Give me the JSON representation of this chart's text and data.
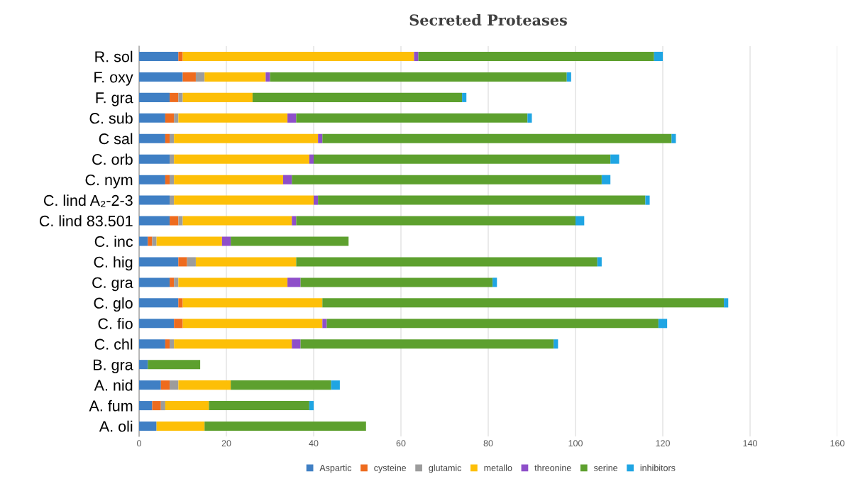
{
  "chart_data": {
    "type": "bar",
    "orientation": "horizontal",
    "stacked": true,
    "title": "Secreted Proteases",
    "categories": [
      "R. sol",
      "F. oxy",
      "F. gra",
      "C. sub",
      "C sal",
      "C. orb",
      "C. nym",
      "C. lind A₂-2-3",
      "C. lind 83.501",
      "C. inc",
      "C. hig",
      "C. gra",
      "C. glo",
      "C. fio",
      "C. chl",
      "B. gra",
      "A. nid",
      "A. fum",
      "A. oli"
    ],
    "series": [
      {
        "name": "Aspartic",
        "color": "#3f7fc4",
        "values": [
          9,
          10,
          7,
          6,
          6,
          7,
          6,
          7,
          7,
          2,
          9,
          7,
          9,
          8,
          6,
          2,
          5,
          3,
          4
        ]
      },
      {
        "name": "cysteine",
        "color": "#ee6b1e",
        "values": [
          1,
          3,
          2,
          2,
          1,
          0,
          1,
          0,
          2,
          1,
          2,
          1,
          1,
          2,
          1,
          0,
          2,
          2,
          0
        ]
      },
      {
        "name": "glutamic",
        "color": "#9c9c9c",
        "values": [
          0,
          2,
          1,
          1,
          1,
          1,
          1,
          1,
          1,
          1,
          2,
          1,
          0,
          0,
          1,
          0,
          2,
          1,
          0
        ]
      },
      {
        "name": "metallo",
        "color": "#fdbf07",
        "values": [
          53,
          14,
          16,
          25,
          33,
          31,
          25,
          32,
          25,
          15,
          23,
          25,
          32,
          32,
          27,
          0,
          12,
          10,
          11
        ]
      },
      {
        "name": "threonine",
        "color": "#8e4fc9",
        "values": [
          1,
          1,
          0,
          2,
          1,
          1,
          2,
          1,
          1,
          2,
          0,
          3,
          0,
          1,
          2,
          0,
          0,
          0,
          0
        ]
      },
      {
        "name": "serine",
        "color": "#5da02e",
        "values": [
          54,
          68,
          48,
          53,
          80,
          68,
          71,
          75,
          64,
          27,
          69,
          44,
          92,
          76,
          58,
          12,
          23,
          23,
          37
        ]
      },
      {
        "name": "inhibitors",
        "color": "#1fa5e3",
        "values": [
          2,
          1,
          1,
          1,
          1,
          2,
          2,
          1,
          2,
          0,
          1,
          1,
          1,
          2,
          1,
          0,
          2,
          1,
          0
        ]
      }
    ],
    "xlim": [
      0,
      160
    ],
    "xticks": [
      0,
      20,
      40,
      60,
      80,
      100,
      120,
      140,
      160
    ],
    "grid": "x",
    "legend": "bottom"
  }
}
